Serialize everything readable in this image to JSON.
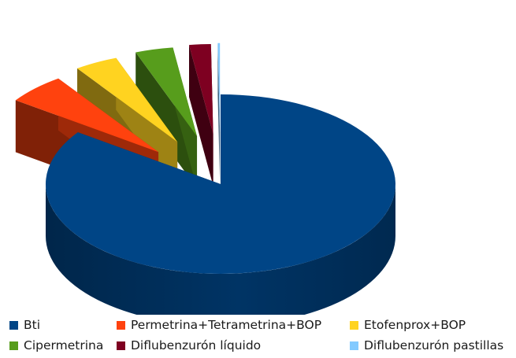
{
  "chart_data": {
    "type": "pie",
    "style": "3d-exploded",
    "title": "",
    "categories": [
      "Bti",
      "Permetrina+Tetrametrina+BOP",
      "Etofenprox+BOP",
      "Cipermetrina",
      "Diflubenzurón líquido",
      "Diflubenzurón pastillas"
    ],
    "values": [
      84.8,
      5.5,
      4.0,
      3.5,
      2.0,
      0.2
    ],
    "colors": [
      "#004586",
      "#ff420e",
      "#ffd320",
      "#579d1c",
      "#7e0021",
      "#83caff"
    ],
    "exploded": [
      false,
      true,
      true,
      true,
      true,
      true
    ],
    "legend_position": "bottom"
  }
}
